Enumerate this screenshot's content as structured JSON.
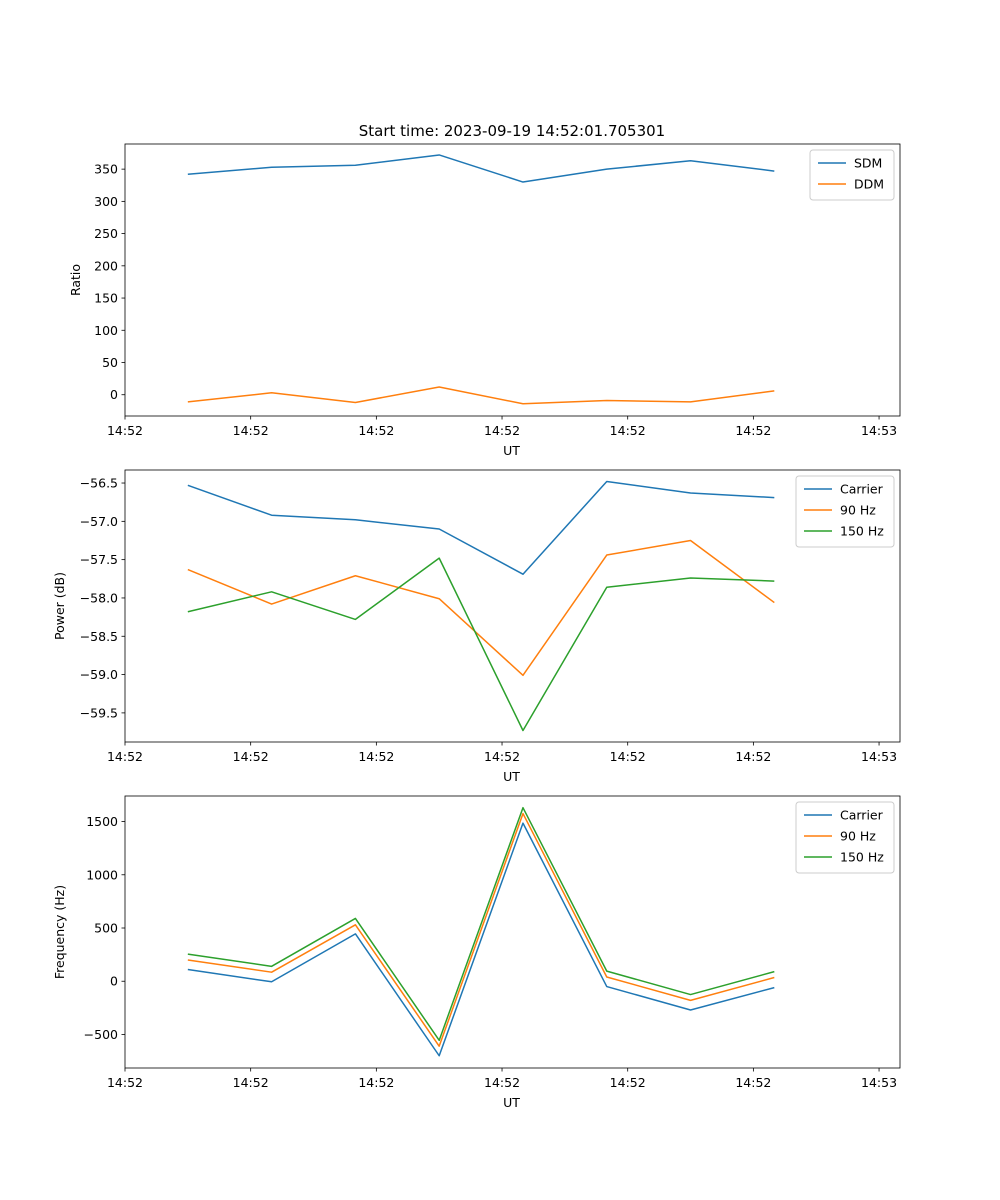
{
  "title": "Start time: 2023-09-19 14:52:01.705301",
  "colors": {
    "blue": "#1f77b4",
    "orange": "#ff7f0e",
    "green": "#2ca02c"
  },
  "chart_data": [
    {
      "type": "line",
      "xlabel": "UT",
      "ylabel": "Ratio",
      "x": [
        0,
        1,
        2,
        3,
        4,
        5,
        6,
        7
      ],
      "xlim": [
        -0.75,
        8.5
      ],
      "xticks": [
        -0.75,
        0.75,
        2.25,
        3.75,
        5.25,
        6.75,
        8.25
      ],
      "xtick_labels": [
        "14:52",
        "14:52",
        "14:52",
        "14:52",
        "14:52",
        "14:52",
        "14:53"
      ],
      "ylim": [
        -33,
        389
      ],
      "yticks": [
        0,
        50,
        100,
        150,
        200,
        250,
        300,
        350
      ],
      "yticks_labels": [
        "0",
        "50",
        "100",
        "150",
        "200",
        "250",
        "300",
        "350"
      ],
      "legend_position": "top-right",
      "series": [
        {
          "name": "SDM",
          "color": "#1f77b4",
          "values": [
            342,
            353,
            356,
            372,
            330,
            350,
            363,
            347
          ]
        },
        {
          "name": "DDM",
          "color": "#ff7f0e",
          "values": [
            -11,
            3,
            -12,
            12,
            -14,
            -9,
            -11,
            6
          ]
        }
      ]
    },
    {
      "type": "line",
      "xlabel": "UT",
      "ylabel": "Power (dB)",
      "x": [
        0,
        1,
        2,
        3,
        4,
        5,
        6,
        7
      ],
      "xlim": [
        -0.75,
        8.5
      ],
      "xticks": [
        -0.75,
        0.75,
        2.25,
        3.75,
        5.25,
        6.75,
        8.25
      ],
      "xtick_labels": [
        "14:52",
        "14:52",
        "14:52",
        "14:52",
        "14:52",
        "14:52",
        "14:53"
      ],
      "ylim": [
        -59.88,
        -56.33
      ],
      "yticks": [
        -59.5,
        -59.0,
        -58.5,
        -58.0,
        -57.5,
        -57.0,
        -56.5
      ],
      "yticks_labels": [
        "−59.5",
        "−59.0",
        "−58.5",
        "−58.0",
        "−57.5",
        "−57.0",
        "−56.5"
      ],
      "legend_position": "top-right",
      "series": [
        {
          "name": "Carrier",
          "color": "#1f77b4",
          "values": [
            -56.53,
            -56.92,
            -56.98,
            -57.1,
            -57.69,
            -56.48,
            -56.63,
            -56.69
          ]
        },
        {
          "name": "90 Hz",
          "color": "#ff7f0e",
          "values": [
            -57.63,
            -58.08,
            -57.71,
            -58.01,
            -59.01,
            -57.44,
            -57.25,
            -58.06
          ]
        },
        {
          "name": "150 Hz",
          "color": "#2ca02c",
          "values": [
            -58.18,
            -57.92,
            -58.28,
            -57.48,
            -59.73,
            -57.86,
            -57.74,
            -57.78
          ]
        }
      ]
    },
    {
      "type": "line",
      "xlabel": "UT",
      "ylabel": "Frequency (Hz)",
      "x": [
        0,
        1,
        2,
        3,
        4,
        5,
        6,
        7
      ],
      "xlim": [
        -0.75,
        8.5
      ],
      "xticks": [
        -0.75,
        0.75,
        2.25,
        3.75,
        5.25,
        6.75,
        8.25
      ],
      "xtick_labels": [
        "14:52",
        "14:52",
        "14:52",
        "14:52",
        "14:52",
        "14:52",
        "14:53"
      ],
      "ylim": [
        -815,
        1740
      ],
      "yticks": [
        -500,
        0,
        500,
        1000,
        1500
      ],
      "yticks_labels": [
        "−500",
        "0",
        "500",
        "1000",
        "1500"
      ],
      "legend_position": "top-right",
      "series": [
        {
          "name": "Carrier",
          "color": "#1f77b4",
          "values": [
            110,
            -5,
            445,
            -700,
            1485,
            -50,
            -270,
            -60
          ]
        },
        {
          "name": "90 Hz",
          "color": "#ff7f0e",
          "values": [
            200,
            85,
            530,
            -610,
            1575,
            40,
            -180,
            35
          ]
        },
        {
          "name": "150 Hz",
          "color": "#2ca02c",
          "values": [
            255,
            140,
            590,
            -555,
            1630,
            95,
            -125,
            90
          ]
        }
      ]
    }
  ]
}
